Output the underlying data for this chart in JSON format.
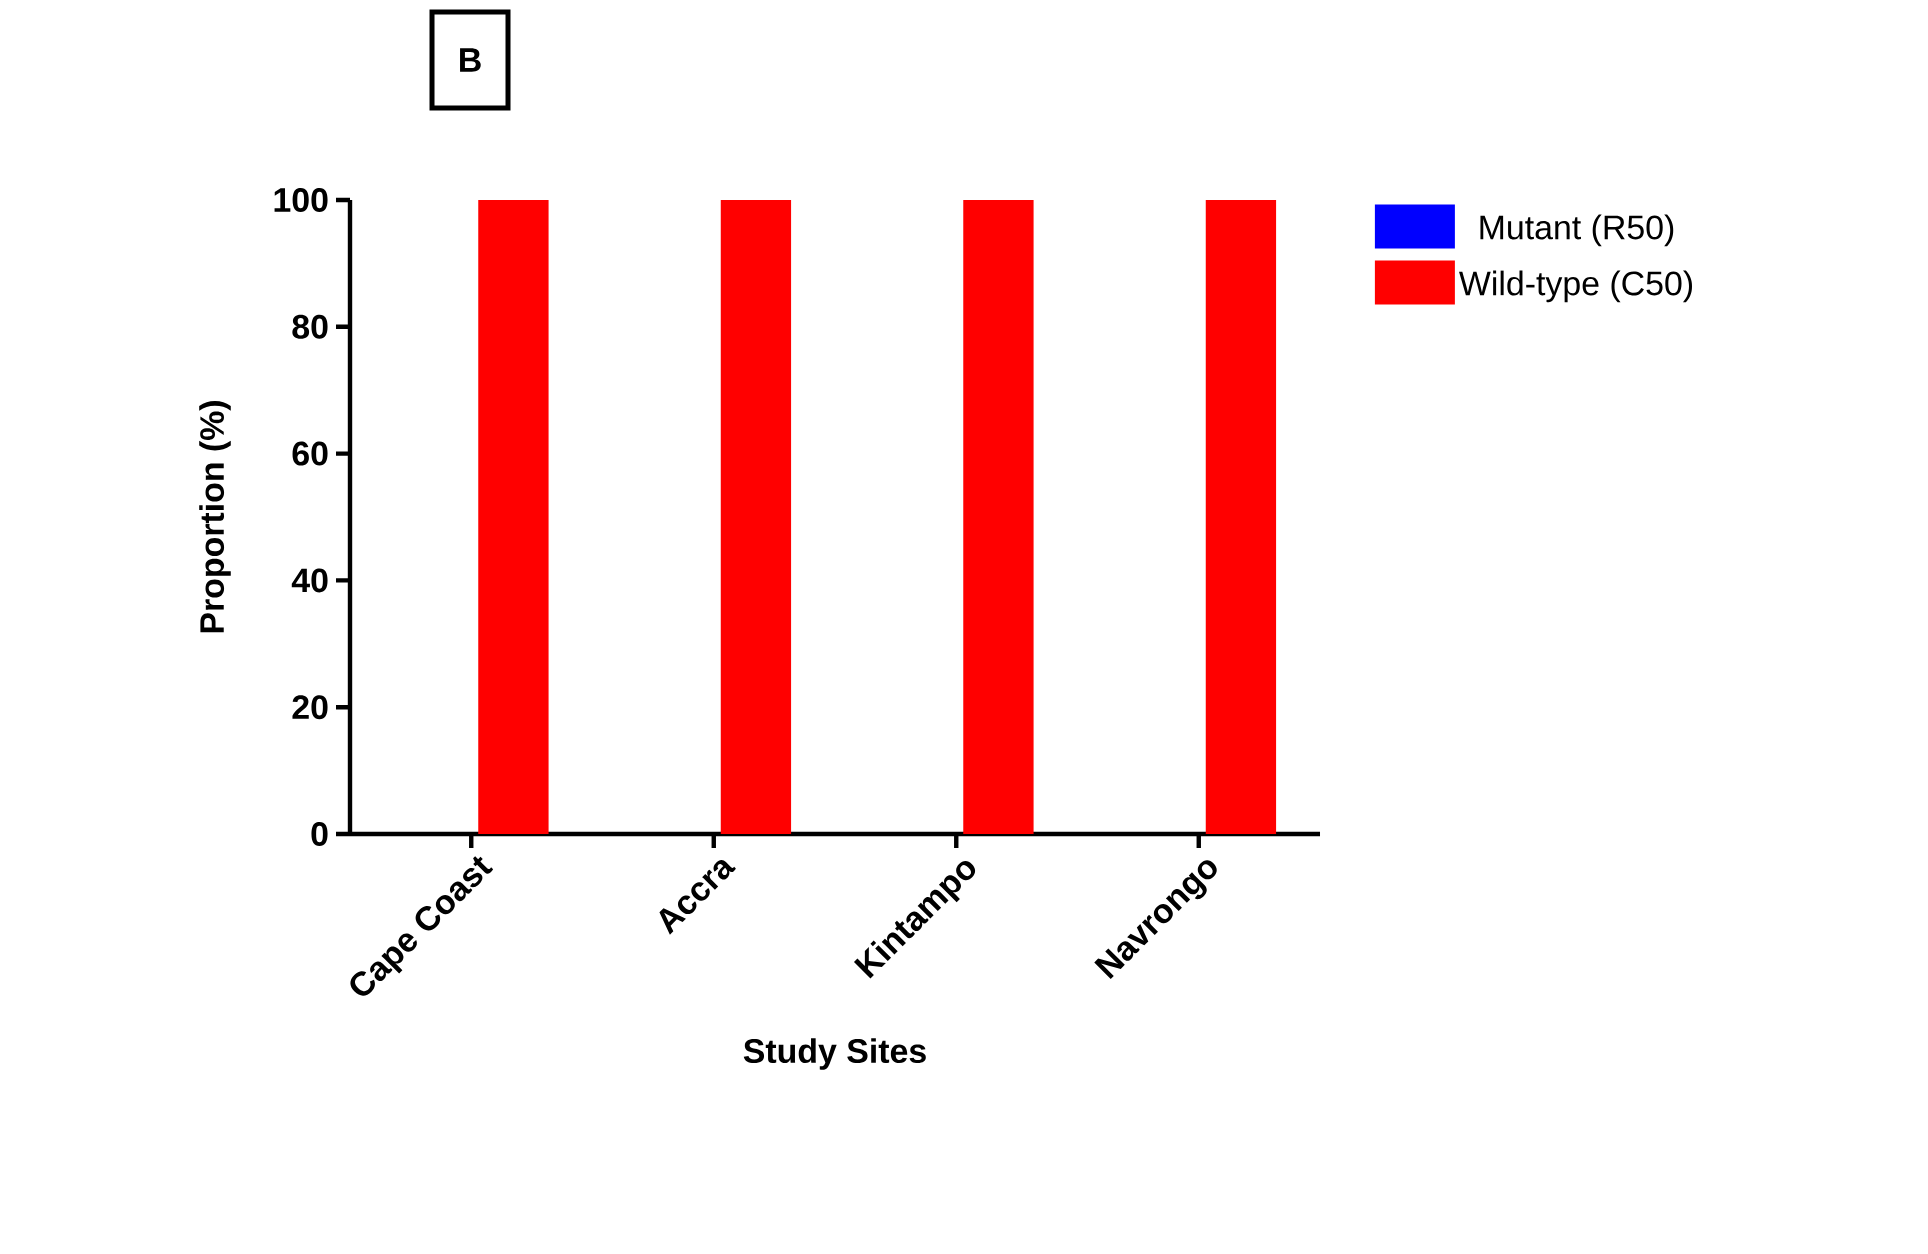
{
  "chart_data": {
    "type": "bar",
    "xlabel": "Study Sites",
    "ylabel": "Proportion (%)",
    "annotations": [
      "B"
    ],
    "categories": [
      "Cape Coast",
      "Accra",
      "Kintampo",
      "Navrongo"
    ],
    "series": [
      {
        "name": "Mutant (R50)",
        "color": "#0000ff",
        "values": [
          0,
          0,
          0,
          0
        ]
      },
      {
        "name": "Wild-type (C50)",
        "color": "#ff0000",
        "values": [
          100,
          100,
          100,
          100
        ]
      }
    ],
    "ylim": [
      0,
      100
    ],
    "yticks": [
      0,
      20,
      40,
      60,
      80,
      100
    ],
    "legend": "top right"
  }
}
